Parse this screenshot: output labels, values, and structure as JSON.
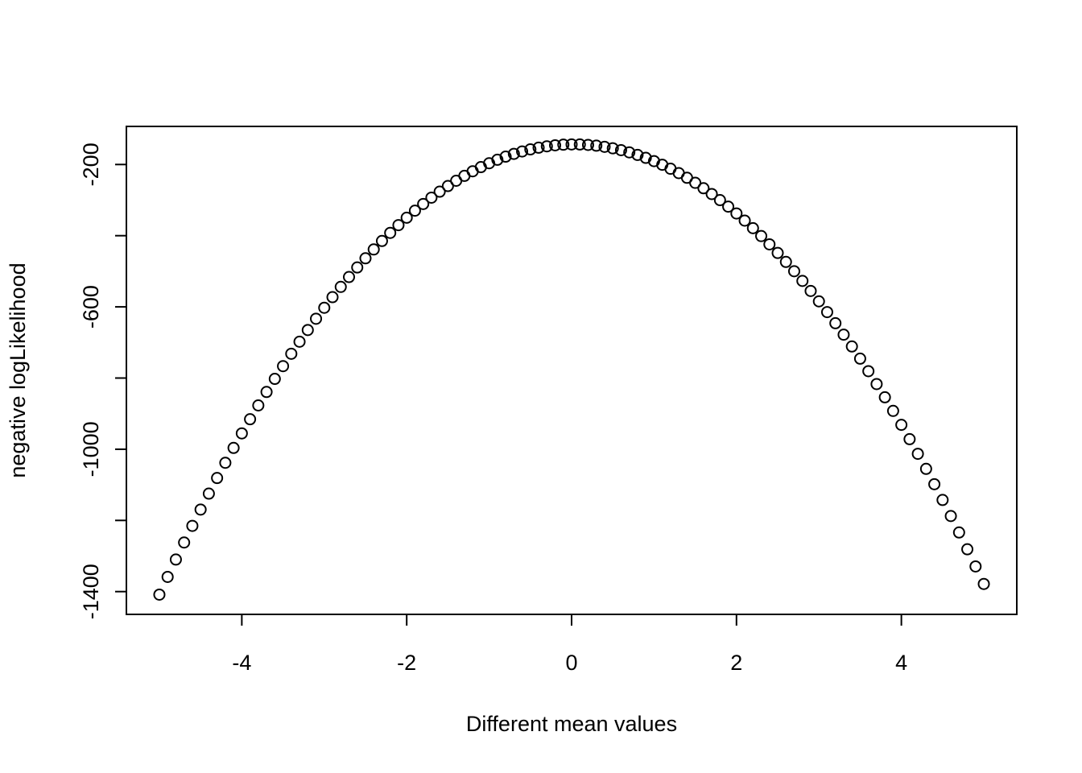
{
  "chart_data": {
    "type": "scatter",
    "x_label": "Different mean values",
    "y_label": "negative logLikelihood",
    "x": [
      -5,
      -4.9,
      -4.8,
      -4.7,
      -4.6,
      -4.5,
      -4.4,
      -4.3,
      -4.2,
      -4.1,
      -4,
      -3.9,
      -3.8,
      -3.7,
      -3.6,
      -3.5,
      -3.4,
      -3.3,
      -3.2,
      -3.1,
      -3,
      -2.9,
      -2.8,
      -2.7,
      -2.6,
      -2.5,
      -2.4,
      -2.3,
      -2.2,
      -2.1,
      -2,
      -1.9,
      -1.8,
      -1.7,
      -1.6,
      -1.5,
      -1.4,
      -1.3,
      -1.2,
      -1.1,
      -1,
      -0.9,
      -0.8,
      -0.7,
      -0.6,
      -0.5,
      -0.4,
      -0.3,
      -0.2,
      -0.1,
      0,
      0.1,
      0.2,
      0.3,
      0.4,
      0.5,
      0.6,
      0.7,
      0.8,
      0.9,
      1,
      1.1,
      1.2,
      1.3,
      1.4,
      1.5,
      1.6,
      1.7,
      1.8,
      1.9,
      2,
      2.1,
      2.2,
      2.3,
      2.4,
      2.5,
      2.6,
      2.7,
      2.8,
      2.9,
      3,
      3.1,
      3.2,
      3.3,
      3.4,
      3.5,
      3.6,
      3.7,
      3.8,
      3.9,
      4,
      4.1,
      4.2,
      4.3,
      4.4,
      4.5,
      4.6,
      4.7,
      4.8,
      4.9,
      5
    ],
    "values": [
      -1408.5,
      -1358.7,
      -1309.9,
      -1262.1,
      -1215.3,
      -1169.5,
      -1124.7,
      -1080.9,
      -1038.1,
      -996.3,
      -955.5,
      -915.7,
      -876.9,
      -839.1,
      -802.3,
      -766.5,
      -731.7,
      -697.9,
      -665.1,
      -633.3,
      -602.5,
      -572.7,
      -543.9,
      -516.1,
      -489.3,
      -463.5,
      -438.7,
      -414.9,
      -392.1,
      -370.3,
      -349.5,
      -329.7,
      -310.9,
      -293.1,
      -276.3,
      -260.5,
      -245.7,
      -231.9,
      -219.1,
      -207.3,
      -196.5,
      -186.7,
      -177.9,
      -170.1,
      -163.3,
      -157.5,
      -152.7,
      -148.9,
      -146.1,
      -144.3,
      -143.5,
      -143.7,
      -144.9,
      -147.1,
      -150.3,
      -154.5,
      -159.7,
      -165.9,
      -173.1,
      -181.3,
      -190.5,
      -200.7,
      -211.9,
      -224.1,
      -237.3,
      -251.5,
      -266.7,
      -282.9,
      -300.1,
      -318.3,
      -337.5,
      -357.7,
      -378.9,
      -401.1,
      -424.3,
      -448.5,
      -473.7,
      -499.9,
      -527.1,
      -555.3,
      -584.5,
      -614.7,
      -645.9,
      -678.1,
      -711.3,
      -745.5,
      -780.7,
      -816.9,
      -854.1,
      -892.3,
      -931.5,
      -971.7,
      -1012.9,
      -1055.1,
      -1098.3,
      -1142.5,
      -1187.7,
      -1233.9,
      -1281.1,
      -1329.3,
      -1378.5
    ],
    "color": "#000000",
    "xlim": [
      -5.4,
      5.4
    ],
    "xticks": [
      -4,
      -2,
      0,
      2,
      4
    ],
    "ylim": [
      -1464,
      -93
    ],
    "yticks": [
      -1400,
      -1000,
      -600,
      -200
    ],
    "yminor_ticks": [
      -1200,
      -800,
      -400
    ]
  }
}
